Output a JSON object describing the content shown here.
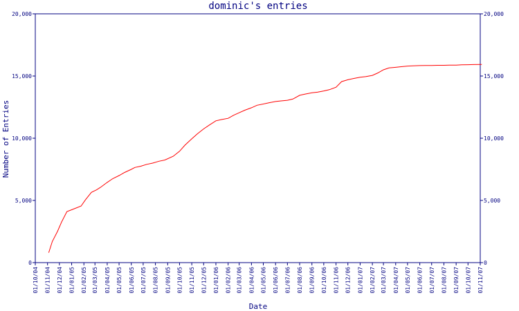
{
  "chart_data": {
    "type": "line",
    "title": "dominic's entries",
    "xlabel": "Date",
    "ylabel": "Number of Entries",
    "ylim": [
      0,
      20000
    ],
    "y_ticks": [
      0,
      5000,
      10000,
      15000,
      20000
    ],
    "y_tick_labels": [
      "0",
      "5,000",
      "10,000",
      "15,000",
      "20,000"
    ],
    "x_tick_labels": [
      "01/10/04",
      "01/11/04",
      "01/12/04",
      "01/01/05",
      "01/02/05",
      "01/03/05",
      "01/04/05",
      "01/05/05",
      "01/06/05",
      "01/07/05",
      "01/08/05",
      "01/09/05",
      "01/10/05",
      "01/11/05",
      "01/12/05",
      "01/01/06",
      "01/02/06",
      "01/03/06",
      "01/04/06",
      "01/05/06",
      "01/06/06",
      "01/07/06",
      "01/08/06",
      "01/09/06",
      "01/10/06",
      "01/11/06",
      "01/12/06",
      "01/01/07",
      "01/02/07",
      "01/03/07",
      "01/04/07",
      "01/05/07",
      "01/06/07",
      "01/07/07",
      "01/08/07",
      "01/09/07",
      "01/10/07",
      "01/11/07"
    ],
    "grid": false,
    "line_color": "#ff0000",
    "axis_color": "#000080",
    "series": [
      {
        "x": [
          "04/11/04",
          "13/11/04",
          "26/11/04",
          "07/12/04",
          "20/12/04",
          "05/01/05",
          "25/01/05",
          "05/02/05",
          "20/02/05",
          "05/03/05",
          "15/03/05",
          "01/04/05",
          "15/04/05",
          "01/05/05",
          "15/05/05",
          "01/06/05",
          "10/06/05",
          "25/06/05",
          "10/07/05",
          "25/07/05",
          "10/08/05",
          "25/08/05",
          "15/09/05",
          "01/10/05",
          "15/10/05",
          "01/11/05",
          "15/11/05",
          "01/12/05",
          "15/12/05",
          "01/01/06",
          "15/01/06",
          "01/02/06",
          "15/02/06",
          "01/03/06",
          "15/03/06",
          "01/04/06",
          "15/04/06",
          "01/05/06",
          "15/05/06",
          "01/06/06",
          "15/06/06",
          "01/07/06",
          "15/07/06",
          "01/08/06",
          "15/08/06",
          "01/09/06",
          "15/09/06",
          "01/10/06",
          "15/10/06",
          "01/11/06",
          "15/11/06",
          "01/12/06",
          "15/12/06",
          "01/01/07",
          "15/01/07",
          "01/02/07",
          "15/02/07",
          "01/03/07",
          "15/03/07",
          "01/04/07",
          "15/04/07",
          "01/05/07",
          "15/05/07",
          "01/06/07",
          "15/06/07",
          "01/07/07",
          "15/07/07",
          "01/08/07",
          "15/08/07",
          "01/09/07",
          "15/09/07",
          "01/10/07",
          "15/10/07",
          "05/11/07"
        ],
        "values": [
          800,
          1700,
          2500,
          3300,
          4100,
          4300,
          4550,
          5050,
          5650,
          5850,
          6050,
          6450,
          6750,
          7000,
          7250,
          7500,
          7650,
          7750,
          7900,
          8000,
          8150,
          8250,
          8550,
          8950,
          9450,
          9950,
          10350,
          10750,
          11050,
          11400,
          11500,
          11600,
          11850,
          12050,
          12250,
          12450,
          12650,
          12750,
          12850,
          12950,
          13000,
          13050,
          13150,
          13450,
          13550,
          13650,
          13700,
          13800,
          13900,
          14100,
          14550,
          14700,
          14800,
          14900,
          14950,
          15050,
          15250,
          15500,
          15650,
          15700,
          15750,
          15800,
          15820,
          15840,
          15850,
          15850,
          15860,
          15860,
          15870,
          15880,
          15900,
          15910,
          15920,
          15930
        ]
      }
    ]
  }
}
